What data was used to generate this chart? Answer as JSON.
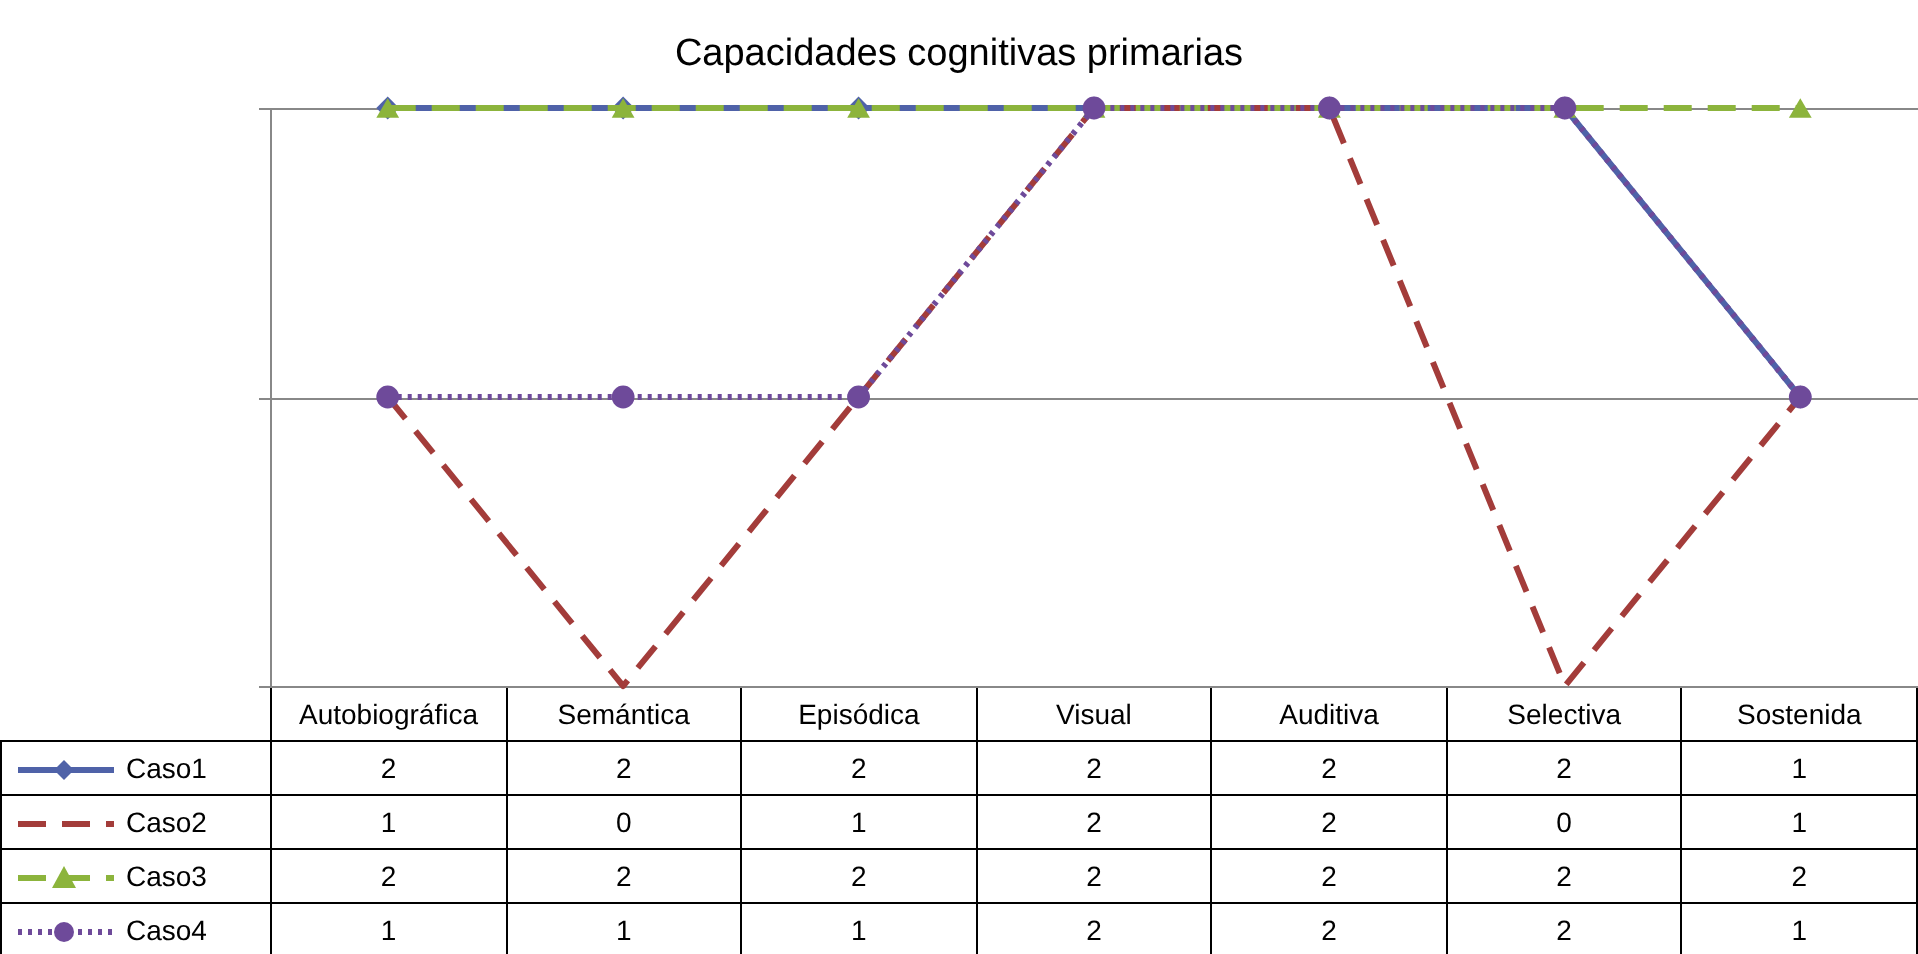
{
  "chart_data": {
    "type": "line",
    "title": "Capacidades cognitivas primarias",
    "categories": [
      "Autobiográfica",
      "Semántica",
      "Episódica",
      "Visual",
      "Auditiva",
      "Selectiva",
      "Sostenida"
    ],
    "series": [
      {
        "name": "Caso1",
        "color": "#4f62a8",
        "marker": "diamond",
        "line_style": "solid",
        "values": [
          2,
          2,
          2,
          2,
          2,
          2,
          1
        ]
      },
      {
        "name": "Caso2",
        "color": "#a33c3a",
        "marker": "none",
        "line_style": "dashed",
        "values": [
          1,
          0,
          1,
          2,
          2,
          0,
          1
        ]
      },
      {
        "name": "Caso3",
        "color": "#8cb43c",
        "marker": "triangle",
        "line_style": "dashed",
        "values": [
          2,
          2,
          2,
          2,
          2,
          2,
          2
        ]
      },
      {
        "name": "Caso4",
        "color": "#6e4a9a",
        "marker": "circle",
        "line_style": "dotted",
        "values": [
          1,
          1,
          1,
          2,
          2,
          2,
          1
        ]
      }
    ],
    "ylim": [
      0,
      2
    ],
    "yticks": [
      {
        "value": 0,
        "label": null
      },
      {
        "value": 1,
        "label": null
      },
      {
        "value": 2,
        "label": null
      }
    ],
    "grid": "y",
    "legend": "bottom",
    "data_labels": true
  }
}
